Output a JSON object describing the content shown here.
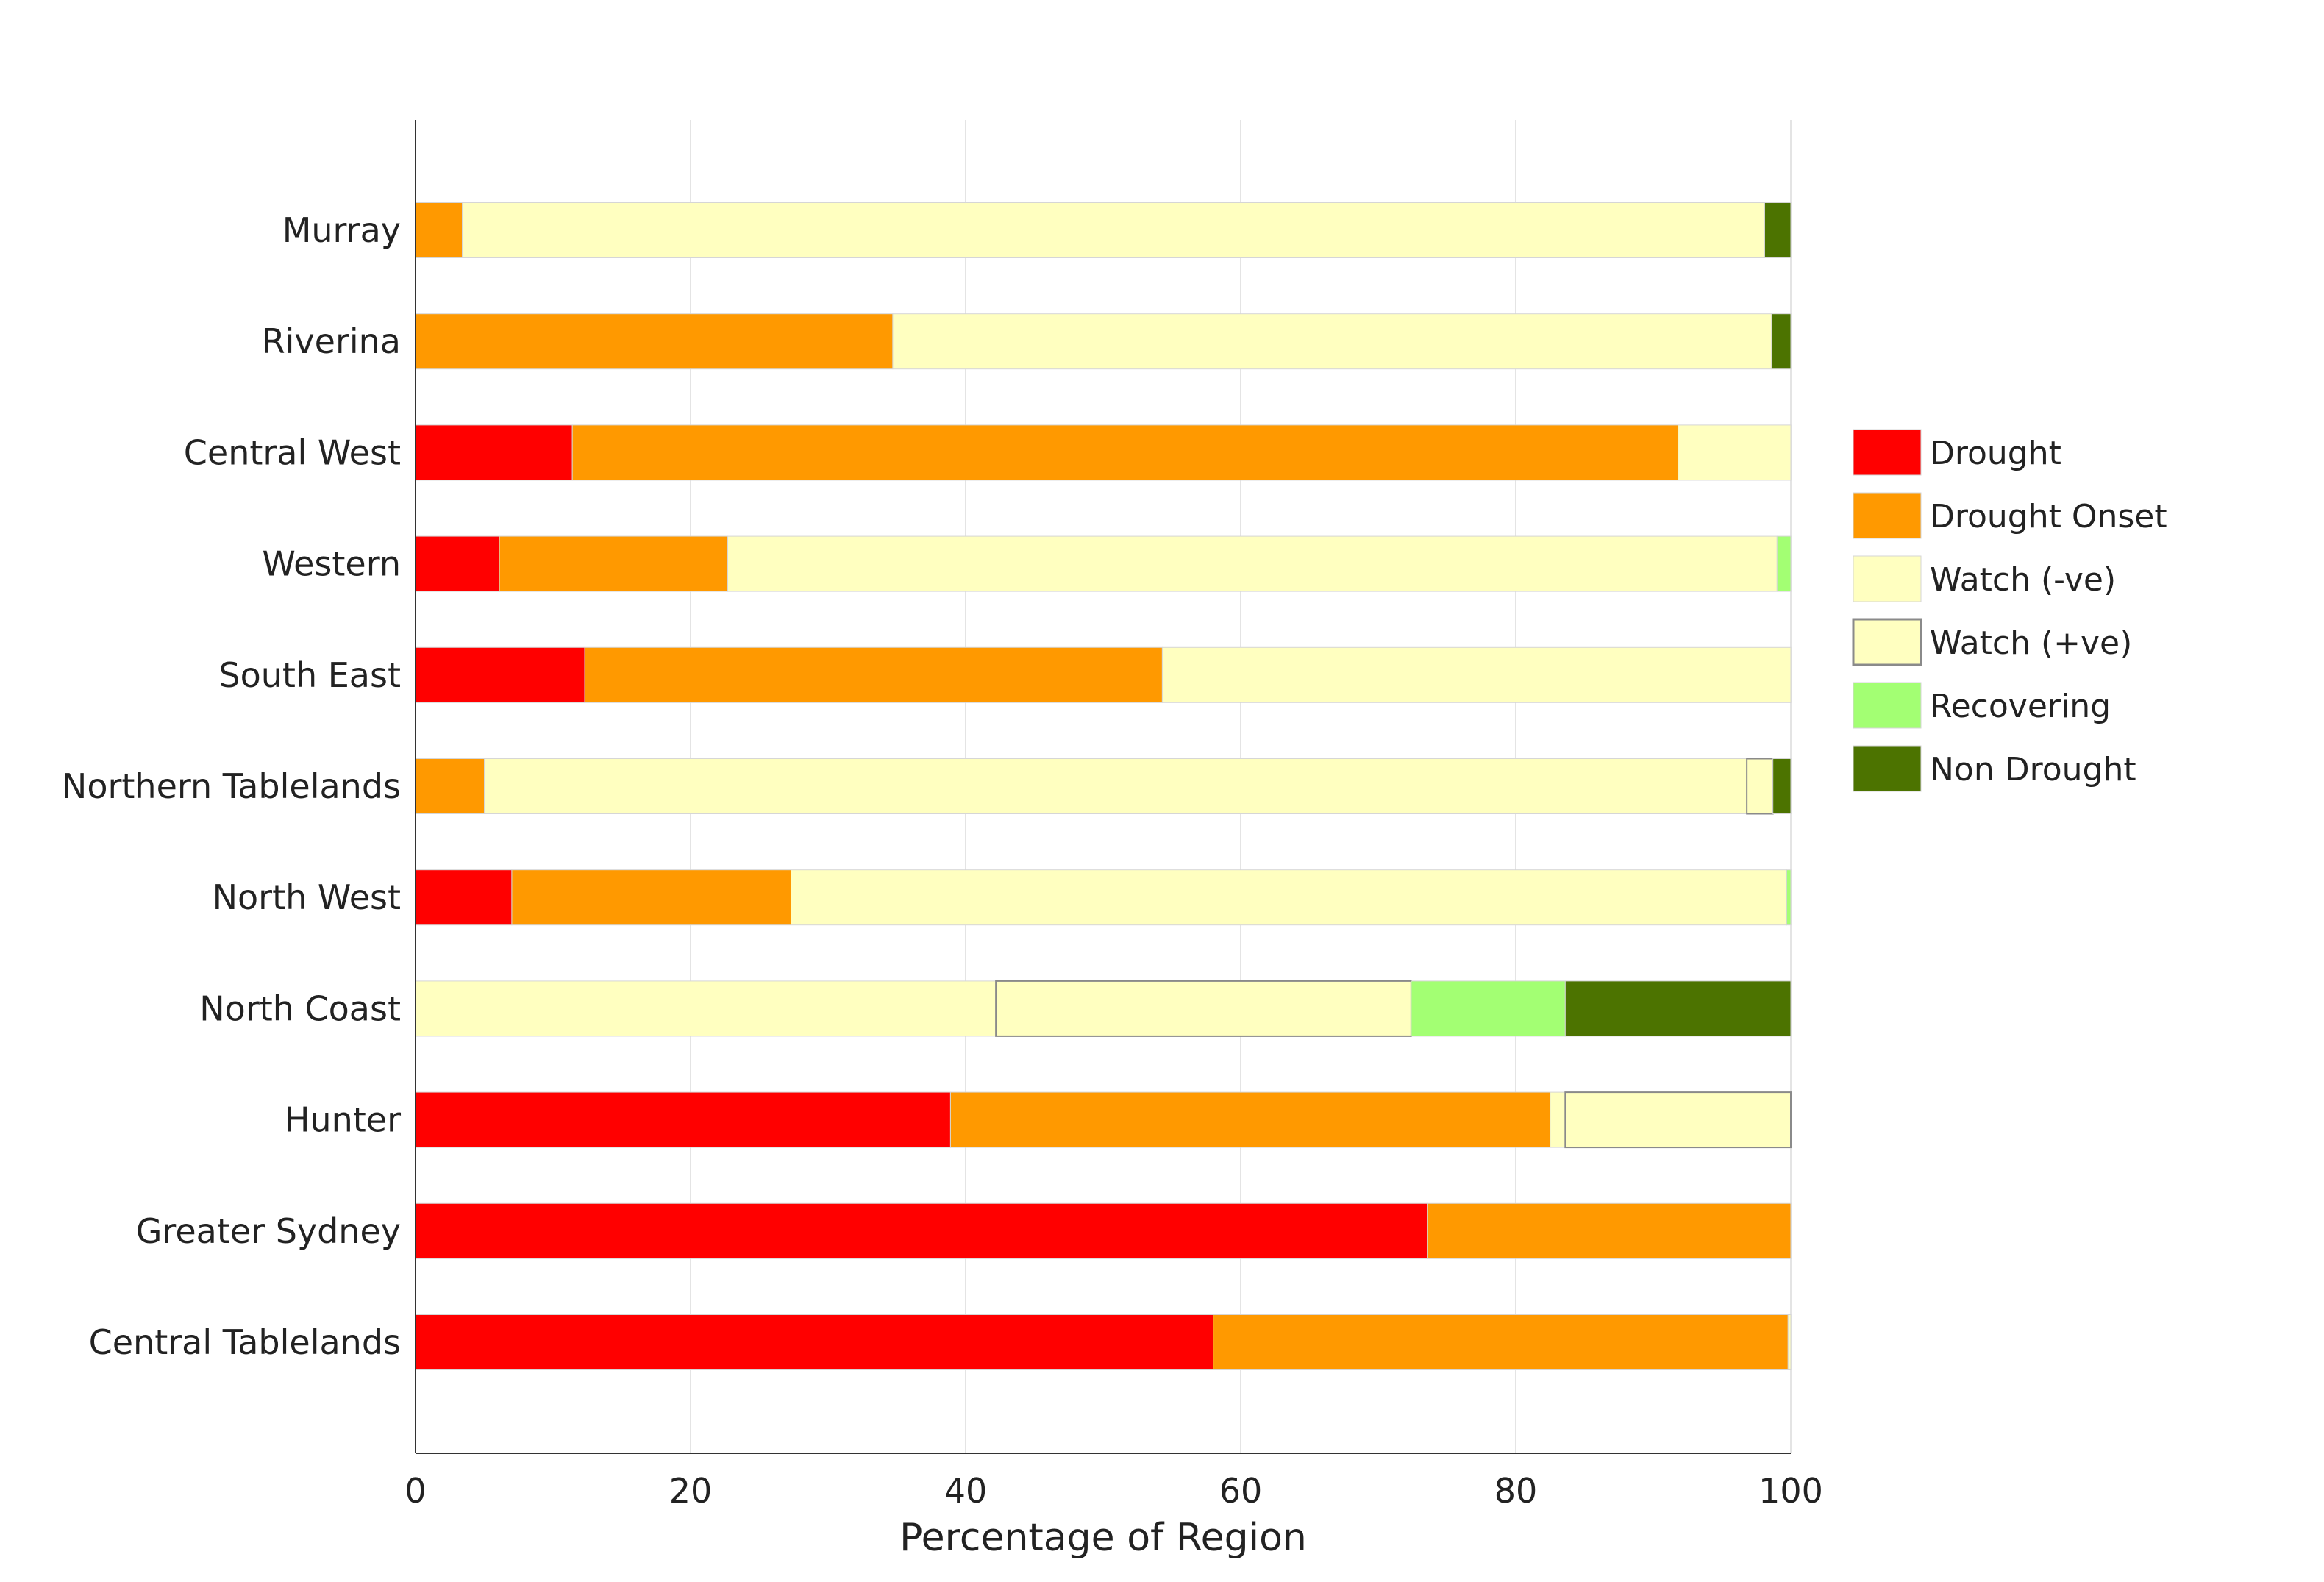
{
  "chart_data": {
    "type": "bar",
    "orientation": "horizontal",
    "stacked": true,
    "title": "",
    "xlabel": "Percentage of Region",
    "ylabel": "",
    "xlim": [
      0,
      100
    ],
    "xticks": [
      "0",
      "20",
      "40",
      "60",
      "80",
      "100"
    ],
    "grid": "vertical",
    "legend_position": "right",
    "categories": [
      "Murray",
      "Riverina",
      "Central West",
      "Western",
      "South East",
      "Northern Tablelands",
      "North West",
      "North Coast",
      "Hunter",
      "Greater Sydney",
      "Central Tablelands"
    ],
    "series": [
      {
        "name": "Drought",
        "color": "#ff0000",
        "values": [
          0,
          0,
          11.4,
          6.1,
          12.3,
          0,
          7.0,
          0,
          38.9,
          73.6,
          58.0
        ]
      },
      {
        "name": "Drought Onset",
        "color": "#ff9900",
        "values": [
          3.4,
          34.7,
          80.4,
          16.6,
          42.0,
          5.0,
          20.3,
          0,
          43.6,
          26.4,
          41.8
        ]
      },
      {
        "name": "Watch (-ve)",
        "color": "#ffffc0",
        "values": [
          94.7,
          63.9,
          8.2,
          76.3,
          45.7,
          91.8,
          72.4,
          42.2,
          1.1,
          0,
          0.2
        ]
      },
      {
        "name": "Watch (+ve)",
        "color": "#ffffc0",
        "values": [
          0,
          0,
          0,
          0,
          0,
          1.9,
          0,
          30.2,
          16.4,
          0,
          0
        ]
      },
      {
        "name": "Recovering",
        "color": "#a3ff73",
        "values": [
          0,
          0,
          0,
          1.0,
          0,
          0,
          0.3,
          11.2,
          0,
          0,
          0
        ]
      },
      {
        "name": "Non Drought",
        "color": "#4c7300",
        "values": [
          1.9,
          1.4,
          0,
          0,
          0,
          1.3,
          0,
          16.4,
          0,
          0,
          0
        ]
      }
    ]
  }
}
